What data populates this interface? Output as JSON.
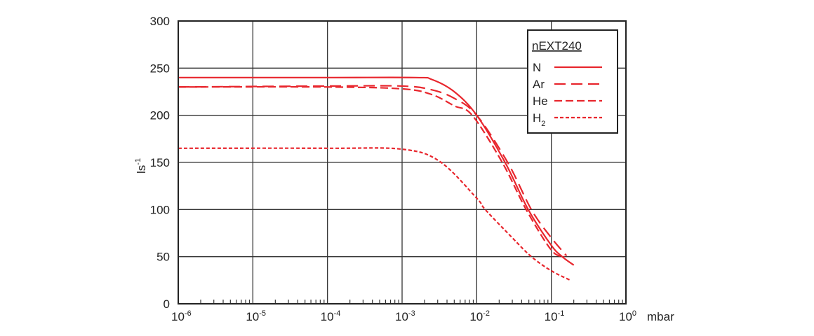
{
  "chart_data": {
    "type": "line",
    "title": "",
    "xlabel": "mbar",
    "ylabel": "ls",
    "ylabel_sup": "-1",
    "x_scale": "log",
    "xlim": [
      1e-06,
      1
    ],
    "ylim": [
      0,
      300
    ],
    "grid": true,
    "x_ticks": [
      {
        "base": "10",
        "exp": "-6"
      },
      {
        "base": "10",
        "exp": "-5"
      },
      {
        "base": "10",
        "exp": "-4"
      },
      {
        "base": "10",
        "exp": "-3"
      },
      {
        "base": "10",
        "exp": "-2"
      },
      {
        "base": "10",
        "exp": "-1"
      },
      {
        "base": "10",
        "exp": "0"
      }
    ],
    "y_ticks": [
      "0",
      "50",
      "100",
      "150",
      "200",
      "250",
      "300"
    ],
    "legend": {
      "title": "nEXT240",
      "placement": "top-right"
    },
    "color": "#e8262d",
    "series": [
      {
        "name": "N",
        "label": "N",
        "sub": "",
        "dash": "solid",
        "points": [
          [
            1e-06,
            240
          ],
          [
            0.0001,
            240
          ],
          [
            0.0015,
            240
          ],
          [
            0.0025,
            238
          ],
          [
            0.005,
            225
          ],
          [
            0.01,
            200
          ],
          [
            0.024,
            150
          ],
          [
            0.049,
            100
          ],
          [
            0.1,
            62
          ],
          [
            0.14,
            50
          ],
          [
            0.2,
            41
          ]
        ]
      },
      {
        "name": "Ar",
        "label": "Ar",
        "sub": "",
        "dash": "long",
        "points": [
          [
            1e-06,
            230
          ],
          [
            0.0001,
            231
          ],
          [
            0.001,
            231
          ],
          [
            0.0025,
            227
          ],
          [
            0.005,
            218
          ],
          [
            0.01,
            200
          ],
          [
            0.026,
            150
          ],
          [
            0.054,
            100
          ],
          [
            0.1,
            70
          ],
          [
            0.16,
            51
          ]
        ]
      },
      {
        "name": "He",
        "label": "He",
        "sub": "",
        "dash": "medium",
        "points": [
          [
            1e-06,
            230
          ],
          [
            0.0001,
            230
          ],
          [
            0.001,
            228
          ],
          [
            0.0025,
            222
          ],
          [
            0.005,
            210
          ],
          [
            0.0087,
            200
          ],
          [
            0.022,
            150
          ],
          [
            0.046,
            100
          ],
          [
            0.1,
            57
          ],
          [
            0.15,
            50
          ]
        ]
      },
      {
        "name": "H2",
        "label": "H",
        "sub": "2",
        "dash": "short",
        "points": [
          [
            1e-06,
            165
          ],
          [
            0.0001,
            165
          ],
          [
            0.001,
            164
          ],
          [
            0.0032,
            151
          ],
          [
            0.01,
            112
          ],
          [
            0.013,
            100
          ],
          [
            0.03,
            70
          ],
          [
            0.054,
            50
          ],
          [
            0.1,
            35
          ],
          [
            0.18,
            25
          ]
        ]
      }
    ]
  }
}
